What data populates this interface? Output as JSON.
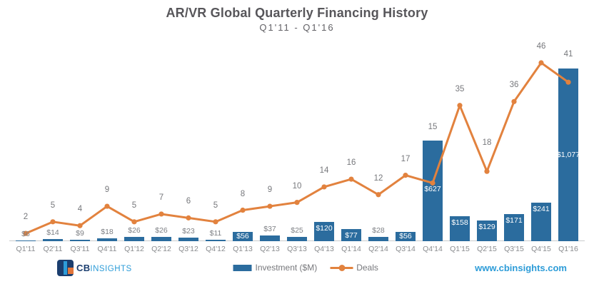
{
  "header": {
    "title": "AR/VR Global Quarterly Financing History",
    "subtitle": "Q1'11 - Q1'16"
  },
  "footer": {
    "brand_cb": "CB",
    "brand_insights": "INSIGHTS",
    "website": "www.cbinsights.com"
  },
  "legend": {
    "investment_label": "Investment ($M)",
    "deals_label": "Deals"
  },
  "colors": {
    "bar_blue": "#2B6C9E",
    "line_orange": "#E2823E",
    "title_gray": "#57565A",
    "label_gray": "#7E8085",
    "label_inside_white": "#FFFFFF",
    "tick_gray": "#8B8D90",
    "website_blue": "#2D9CD8",
    "logo_navy": "#1B3E6F",
    "logo_orange": "#E2763B",
    "baseline_gray": "#C9CBCD"
  },
  "chart_data": {
    "type": "bar+line",
    "title": "AR/VR Global Quarterly Financing History",
    "subtitle": "Q1'11 - Q1'16",
    "categories": [
      "Q1'11",
      "Q2'11",
      "Q3'11",
      "Q4'11",
      "Q1'12",
      "Q2'12",
      "Q3'12",
      "Q4'12",
      "Q1'13",
      "Q2'13",
      "Q3'13",
      "Q4'13",
      "Q1'14",
      "Q2'14",
      "Q3'14",
      "Q4'14",
      "Q1'15",
      "Q2'15",
      "Q3'15",
      "Q4'15",
      "Q1'16"
    ],
    "series": [
      {
        "name": "Investment ($M)",
        "type": "bar",
        "values": [
          6,
          14,
          9,
          18,
          26,
          26,
          23,
          11,
          56,
          37,
          25,
          120,
          77,
          28,
          56,
          627,
          158,
          129,
          171,
          241,
          1077
        ],
        "labels": [
          "$6",
          "$14",
          "$9",
          "$18",
          "$26",
          "$26",
          "$23",
          "$11",
          "$56",
          "$37",
          "$25",
          "$120",
          "$77",
          "$28",
          "$56",
          "$627",
          "$158",
          "$129",
          "$171",
          "$241",
          "$1,077"
        ]
      },
      {
        "name": "Deals",
        "type": "line",
        "values": [
          2,
          5,
          4,
          9,
          5,
          7,
          6,
          5,
          8,
          9,
          10,
          14,
          16,
          12,
          17,
          15,
          35,
          18,
          36,
          46,
          41
        ]
      }
    ],
    "xlabel": "",
    "ylabel": "",
    "y_left_range": [
      0,
      1100
    ],
    "y_right_range": [
      0,
      46
    ],
    "grid": false,
    "y_axes_visible": false,
    "legend_position": "bottom-center",
    "label_hints": {
      "inside_threshold": 50,
      "invest_label_dy": {
        "15": 62,
        "20": 115
      },
      "deals_label_dy": {
        "15": -72,
        "17": -34,
        "20": -33
      }
    }
  }
}
